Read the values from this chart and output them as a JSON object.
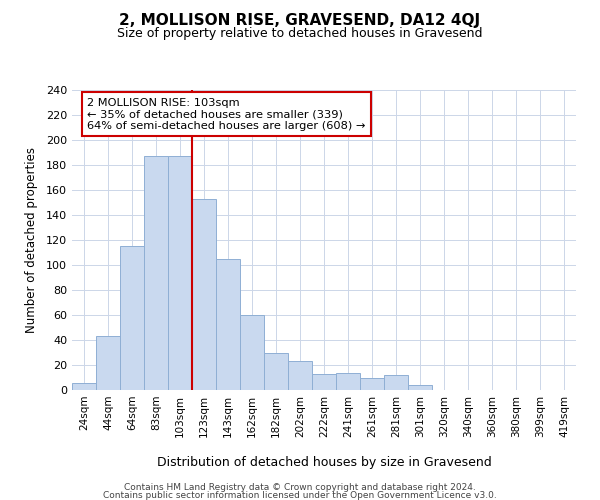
{
  "title": "2, MOLLISON RISE, GRAVESEND, DA12 4QJ",
  "subtitle": "Size of property relative to detached houses in Gravesend",
  "xlabel": "Distribution of detached houses by size in Gravesend",
  "ylabel": "Number of detached properties",
  "tick_labels": [
    "24sqm",
    "44sqm",
    "64sqm",
    "83sqm",
    "103sqm",
    "123sqm",
    "143sqm",
    "162sqm",
    "182sqm",
    "202sqm",
    "222sqm",
    "241sqm",
    "261sqm",
    "281sqm",
    "301sqm",
    "320sqm",
    "340sqm",
    "360sqm",
    "380sqm",
    "399sqm",
    "419sqm"
  ],
  "bar_heights": [
    6,
    43,
    115,
    187,
    187,
    153,
    105,
    60,
    30,
    23,
    13,
    14,
    10,
    12,
    4,
    0,
    0,
    0,
    0,
    0,
    0
  ],
  "bar_color": "#c9d9ef",
  "bar_edgecolor": "#8fafd4",
  "vline_color": "#cc0000",
  "annotation_title": "2 MOLLISON RISE: 103sqm",
  "annotation_line1": "← 35% of detached houses are smaller (339)",
  "annotation_line2": "64% of semi-detached houses are larger (608) →",
  "annotation_box_color": "#ffffff",
  "annotation_box_edgecolor": "#cc0000",
  "ylim": [
    0,
    240
  ],
  "yticks": [
    0,
    20,
    40,
    60,
    80,
    100,
    120,
    140,
    160,
    180,
    200,
    220,
    240
  ],
  "footer1": "Contains HM Land Registry data © Crown copyright and database right 2024.",
  "footer2": "Contains public sector information licensed under the Open Government Licence v3.0.",
  "bg_color": "#ffffff",
  "grid_color": "#ccd6e8"
}
